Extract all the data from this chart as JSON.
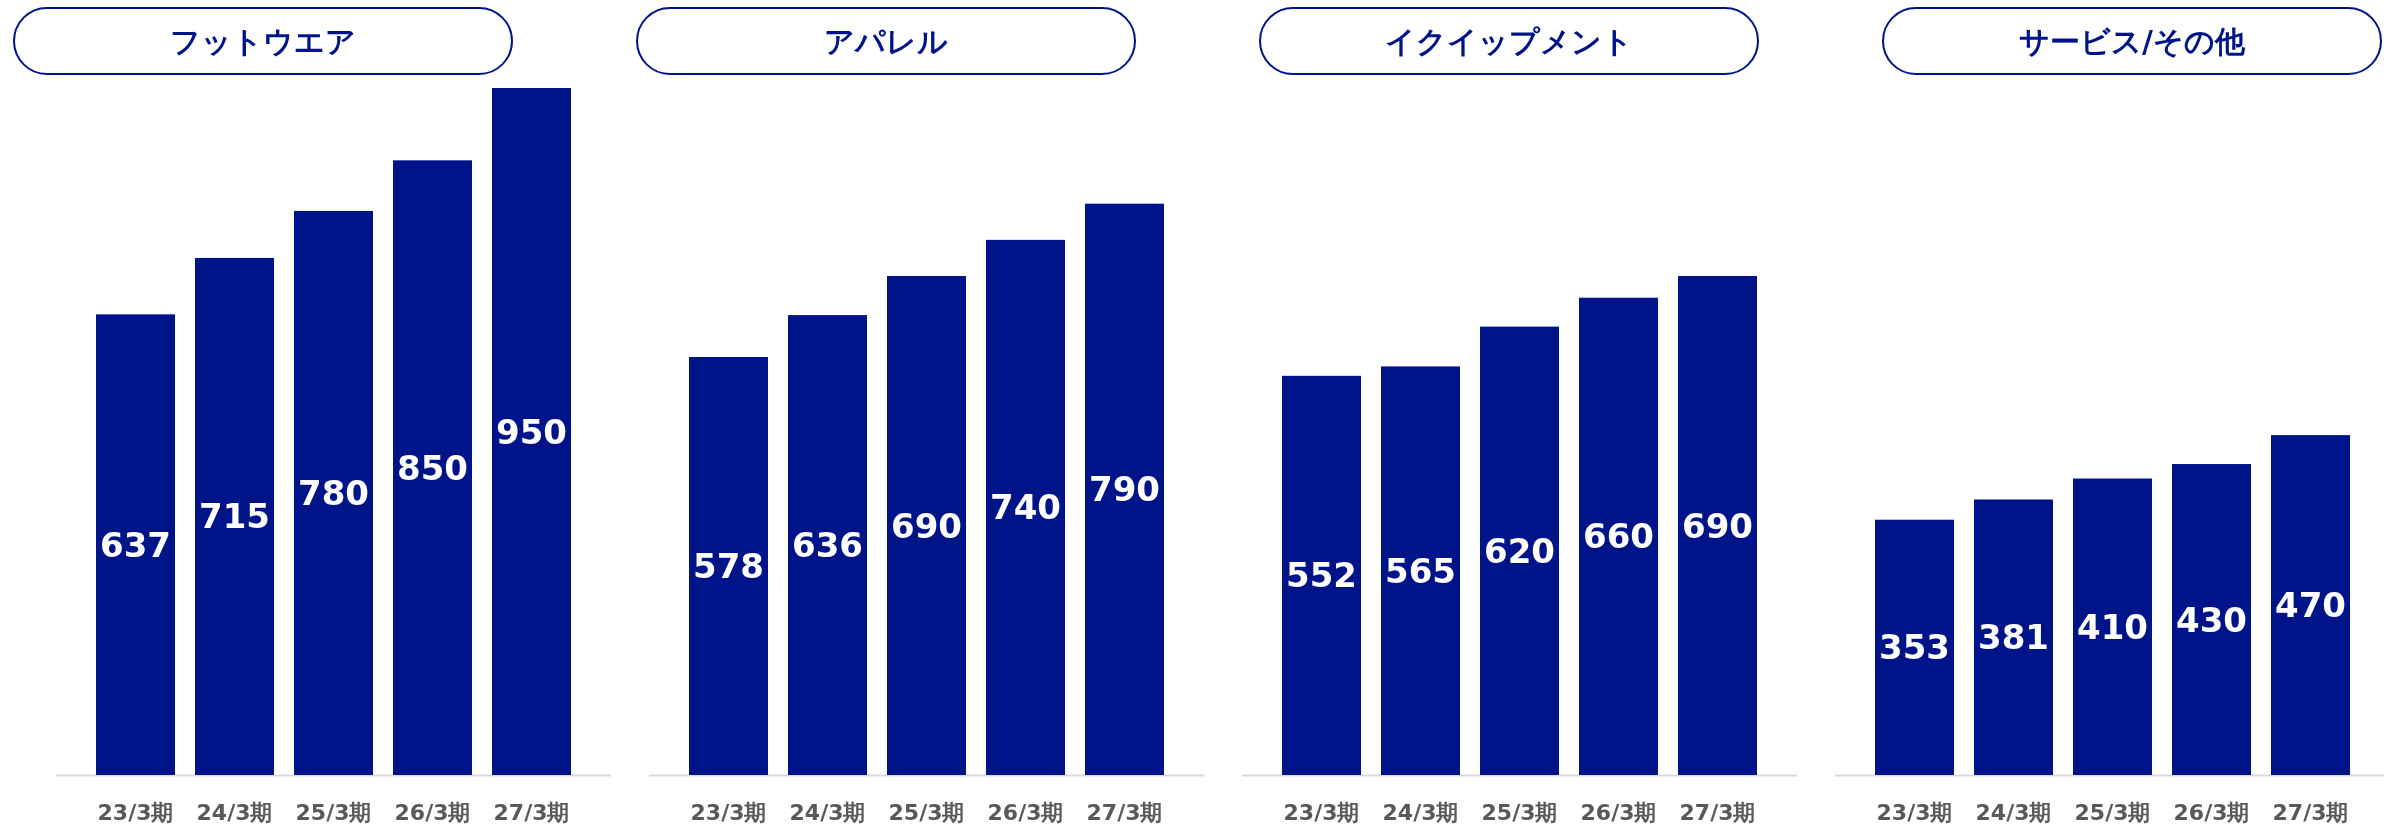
{
  "chart_data": [
    {
      "type": "bar",
      "title": "フットウエア",
      "categories": [
        "23/3期",
        "24/3期",
        "25/3期",
        "26/3期",
        "27/3期"
      ],
      "values": [
        637,
        715,
        780,
        850,
        950
      ],
      "color": "#00148a",
      "data_labels": true
    },
    {
      "type": "bar",
      "title": "アパレル",
      "categories": [
        "23/3期",
        "24/3期",
        "25/3期",
        "26/3期",
        "27/3期"
      ],
      "values": [
        578,
        636,
        690,
        740,
        790
      ],
      "color": "#00148a",
      "data_labels": true
    },
    {
      "type": "bar",
      "title": "イクイップメント",
      "categories": [
        "23/3期",
        "24/3期",
        "25/3期",
        "26/3期",
        "27/3期"
      ],
      "values": [
        552,
        565,
        620,
        660,
        690
      ],
      "color": "#00148a",
      "data_labels": true
    },
    {
      "type": "bar",
      "title": "サービス/その他",
      "categories": [
        "23/3期",
        "24/3期",
        "25/3期",
        "26/3期",
        "27/3期"
      ],
      "values": [
        353,
        381,
        410,
        430,
        470
      ],
      "color": "#00148a",
      "data_labels": true
    }
  ]
}
